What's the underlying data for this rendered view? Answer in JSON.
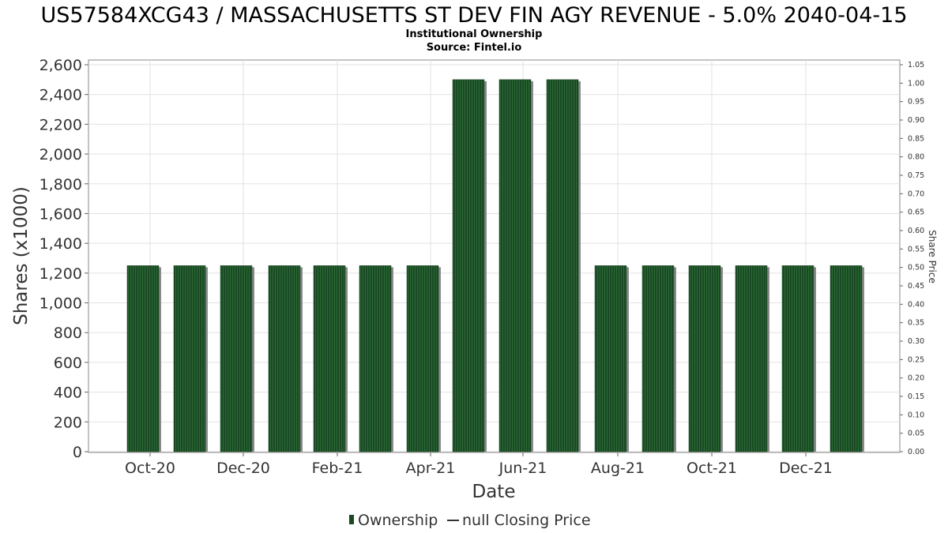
{
  "chart_data": {
    "type": "bar",
    "title": "US57584XCG43 / MASSACHUSETTS ST DEV FIN AGY REVENUE - 5.0% 2040-04-15",
    "subtitle": "Institutional Ownership",
    "source": "Source: Fintel.io",
    "xlabel": "Date",
    "ylabel": "Shares (x1000)",
    "y2label": "Share Price",
    "ylim": [
      0,
      2600
    ],
    "y2lim": [
      0,
      1.05
    ],
    "yticks": [
      "0",
      "200",
      "400",
      "600",
      "800",
      "1,000",
      "1,200",
      "1,400",
      "1,600",
      "1,800",
      "2,000",
      "2,200",
      "2,400",
      "2,600"
    ],
    "y2ticks": [
      "0.00",
      "0.05",
      "0.10",
      "0.15",
      "0.20",
      "0.25",
      "0.30",
      "0.35",
      "0.40",
      "0.45",
      "0.50",
      "0.55",
      "0.60",
      "0.65",
      "0.70",
      "0.75",
      "0.80",
      "0.85",
      "0.90",
      "0.95",
      "1.00",
      "1.05"
    ],
    "xticks": [
      "Oct-20",
      "Dec-20",
      "Feb-21",
      "Apr-21",
      "Jun-21",
      "Aug-21",
      "Oct-21",
      "Dec-21"
    ],
    "grid": true,
    "legend_position": "bottom",
    "legend": [
      {
        "label": "Ownership",
        "color": "#1a4a24"
      },
      {
        "label": "null Closing Price",
        "color": "#333333"
      }
    ],
    "series": [
      {
        "name": "Ownership",
        "color": "#1a4a24",
        "values": [
          1250,
          1250,
          1250,
          1250,
          1250,
          1250,
          1250,
          2500,
          2500,
          2500,
          1250,
          1250,
          1250,
          1250,
          1250,
          1250
        ]
      }
    ]
  }
}
